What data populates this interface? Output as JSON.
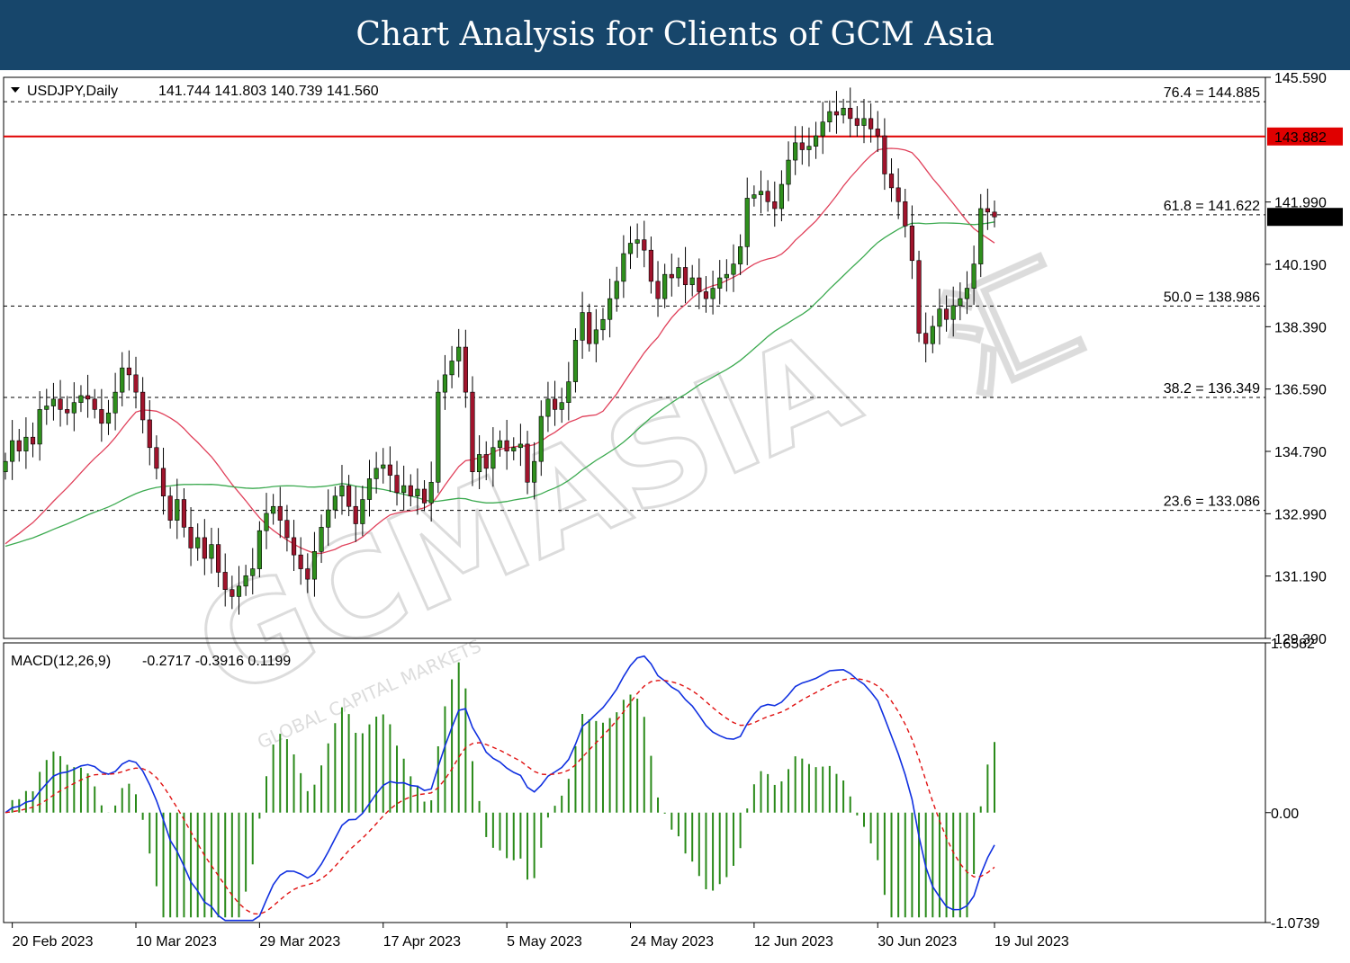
{
  "banner": {
    "title": "Chart Analysis for Clients of GCM Asia"
  },
  "watermark": {
    "brand": "GCMASIA",
    "cn": "汇",
    "tagline": "GLOBAL CAPITAL MARKETS"
  },
  "colors": {
    "banner": "#17466b",
    "bull": "#2f8f1d",
    "bear": "#a0142c",
    "ma_fast": "#e0405a",
    "ma_slow": "#3caa50",
    "resistance": "#e00000",
    "macd": "#1030e0",
    "signal": "#e01010",
    "hist": "#2a8a1a"
  },
  "chart_data": [
    {
      "type": "candlestick",
      "title": "USDJPY,Daily",
      "header_values": "141.744 141.803 140.739 141.560",
      "ylim": [
        129.39,
        145.59
      ],
      "y_ticks": [
        "145.590",
        "141.990",
        "140.190",
        "138.390",
        "136.590",
        "134.790",
        "132.990",
        "131.190",
        "129.390"
      ],
      "x_ticks": [
        "20 Feb 2023",
        "10 Mar 2023",
        "29 Mar 2023",
        "17 Apr 2023",
        "5 May 2023",
        "24 May 2023",
        "12 Jun 2023",
        "30 Jun 2023",
        "19 Jul 2023"
      ],
      "current_price": "141.560",
      "resistance": {
        "value": 143.882,
        "label": "143.882"
      },
      "fib_levels": [
        {
          "value": 144.885,
          "label": "76.4 = 144.885"
        },
        {
          "value": 141.622,
          "label": "61.8 = 141.622"
        },
        {
          "value": 138.986,
          "label": "50.0 = 138.986"
        },
        {
          "value": 136.349,
          "label": "38.2 = 136.349"
        },
        {
          "value": 133.086,
          "label": "23.6 = 133.086"
        }
      ],
      "closes": [
        134.5,
        135.1,
        134.8,
        135.2,
        135.0,
        136.0,
        136.1,
        136.3,
        136.0,
        135.9,
        136.2,
        136.4,
        136.3,
        136.0,
        135.6,
        135.9,
        136.5,
        137.2,
        137.0,
        136.5,
        135.7,
        134.9,
        134.3,
        133.5,
        132.8,
        133.4,
        132.6,
        132.0,
        132.3,
        131.7,
        132.1,
        131.3,
        130.8,
        130.6,
        130.9,
        131.2,
        131.4,
        132.5,
        133.0,
        133.2,
        132.8,
        132.3,
        131.8,
        131.4,
        131.1,
        131.9,
        132.6,
        133.1,
        133.5,
        133.8,
        133.2,
        132.7,
        133.4,
        134.0,
        134.3,
        134.4,
        134.1,
        133.6,
        133.8,
        133.5,
        133.7,
        133.3,
        133.9,
        136.5,
        137.0,
        137.4,
        137.8,
        136.5,
        134.2,
        134.7,
        134.3,
        134.9,
        135.1,
        134.8,
        134.9,
        135.0,
        133.9,
        134.5,
        135.8,
        136.3,
        136.0,
        136.2,
        136.8,
        138.0,
        138.8,
        137.9,
        138.3,
        138.6,
        139.2,
        139.7,
        140.5,
        140.8,
        140.9,
        140.6,
        139.7,
        139.2,
        139.9,
        139.8,
        140.1,
        139.6,
        139.8,
        139.4,
        139.2,
        139.5,
        139.8,
        139.9,
        140.2,
        140.7,
        142.1,
        142.2,
        142.3,
        142.0,
        141.8,
        142.5,
        143.2,
        143.7,
        143.5,
        143.6,
        143.9,
        144.3,
        144.6,
        144.5,
        144.7,
        144.4,
        144.2,
        144.4,
        144.1,
        143.9,
        142.8,
        142.4,
        142.0,
        141.3,
        140.3,
        138.2,
        137.9,
        138.4,
        138.9,
        138.6,
        139.0,
        139.2,
        139.5,
        140.2,
        141.8,
        141.7,
        141.56
      ],
      "ma_fast_range": [
        128.0,
        142.3
      ],
      "ma_slow_range": [
        129.0,
        140.3
      ]
    },
    {
      "type": "line",
      "title": "MACD(12,26,9)",
      "header_values": "-0.2717 -0.3916 0.1199",
      "ylim": [
        -1.0739,
        1.6582
      ],
      "y_ticks": [
        "1.6582",
        "0.00",
        "-1.0739"
      ],
      "series": [
        {
          "name": "MACD",
          "style": "solid"
        },
        {
          "name": "Signal",
          "style": "dashed"
        },
        {
          "name": "Histogram",
          "style": "bars"
        }
      ]
    }
  ]
}
